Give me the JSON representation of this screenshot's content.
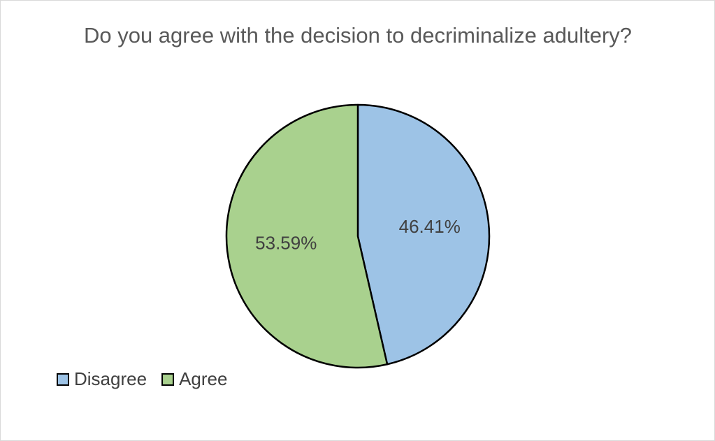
{
  "chart_data": {
    "type": "pie",
    "title": "Do you agree with the decision to decriminalize adultery?",
    "categories": [
      "Disagree",
      "Agree"
    ],
    "values": [
      46.41,
      53.59
    ],
    "value_labels": [
      "46.41%",
      "53.59%"
    ],
    "colors": [
      "#9dc3e6",
      "#a9d18e"
    ],
    "legend": "bottom-left"
  }
}
